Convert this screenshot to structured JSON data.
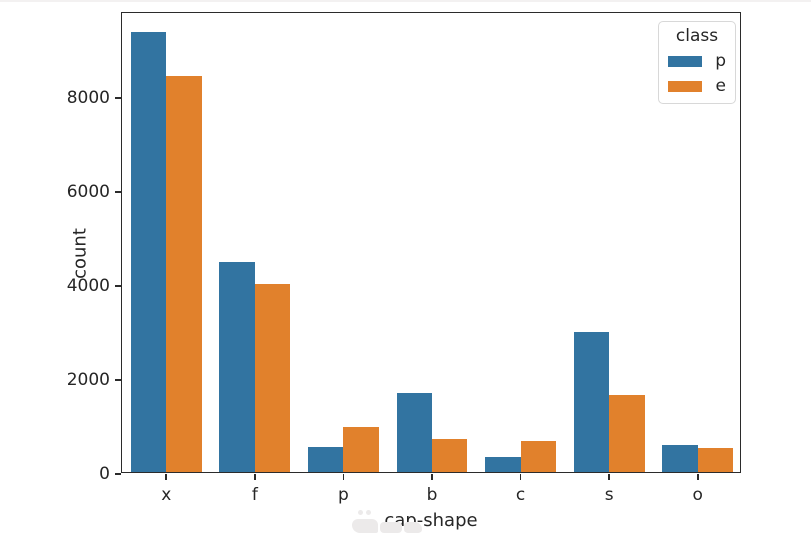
{
  "chart_data": {
    "type": "bar",
    "title": "",
    "xlabel": "cap-shape",
    "ylabel": "count",
    "categories": [
      "x",
      "f",
      "p",
      "b",
      "c",
      "s",
      "o"
    ],
    "series": [
      {
        "name": "p",
        "color": "#3274a1",
        "values": [
          9360,
          4470,
          530,
          1690,
          330,
          2970,
          570
        ]
      },
      {
        "name": "e",
        "color": "#e1812c",
        "values": [
          8430,
          4000,
          955,
          710,
          660,
          1630,
          520
        ]
      }
    ],
    "legend": {
      "title": "class",
      "position": "upper right"
    },
    "ylim": [
      0,
      9810
    ],
    "yticks": [
      0,
      2000,
      4000,
      6000,
      8000
    ],
    "grid": false,
    "spine_color": "#2b2b2b",
    "text_color": "#262626"
  }
}
